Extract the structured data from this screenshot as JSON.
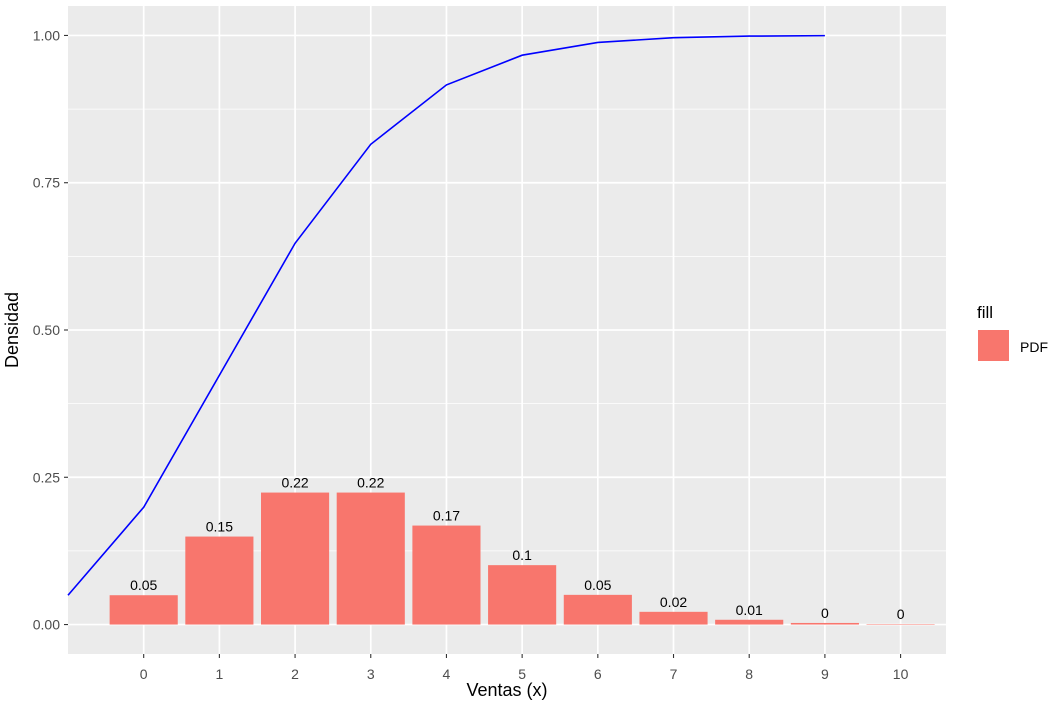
{
  "chart_data": {
    "type": "bar",
    "x": [
      0,
      1,
      2,
      3,
      4,
      5,
      6,
      7,
      8,
      9,
      10
    ],
    "xlabel": "Ventas (x)",
    "ylabel": "Densidad",
    "xlim": [
      -1,
      10.6
    ],
    "ylim": [
      -0.05,
      1.05
    ],
    "y_ticks": [
      "0.00",
      "0.25",
      "0.50",
      "0.75",
      "1.00"
    ],
    "y_tick_values": [
      0,
      0.25,
      0.5,
      0.75,
      1.0
    ],
    "x_ticks": [
      "0",
      "1",
      "2",
      "3",
      "4",
      "5",
      "6",
      "7",
      "8",
      "9",
      "10"
    ],
    "grid": true,
    "panel_background": "#EBEBEB",
    "series": [
      {
        "name": "PDF",
        "kind": "bar",
        "color": "#F8766D",
        "values": [
          0.049787,
          0.149361,
          0.224042,
          0.224042,
          0.168031,
          0.100819,
          0.050409,
          0.021604,
          0.008102,
          0.002701,
          0.00081
        ],
        "labels": [
          "0.05",
          "0.15",
          "0.22",
          "0.22",
          "0.17",
          "0.1",
          "0.05",
          "0.02",
          "0.01",
          "0",
          "0"
        ]
      },
      {
        "kind": "line",
        "color": "#0000FF",
        "x": [
          -1,
          0,
          1,
          2,
          3,
          4,
          5,
          6,
          7,
          8,
          9
        ],
        "values": [
          0.049787,
          0.199148,
          0.42319,
          0.647232,
          0.815263,
          0.916082,
          0.966491,
          0.988095,
          0.996197,
          0.998898,
          0.999708
        ]
      }
    ],
    "legend": {
      "title": "fill",
      "entries": [
        "PDF"
      ],
      "position": "right"
    }
  }
}
